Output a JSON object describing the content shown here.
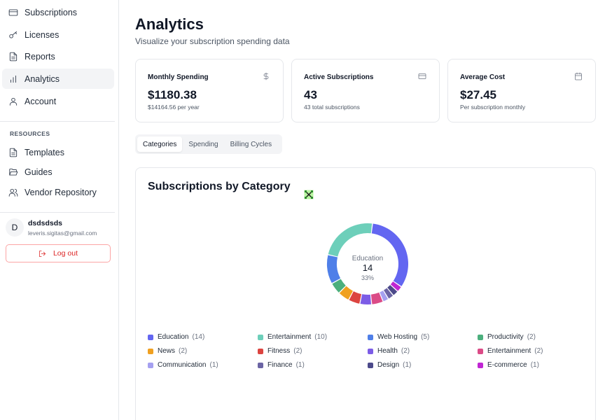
{
  "sidebar": {
    "items": [
      {
        "label": "Subscriptions",
        "icon": "credit-card-icon"
      },
      {
        "label": "Licenses",
        "icon": "key-icon"
      },
      {
        "label": "Reports",
        "icon": "file-text-icon"
      },
      {
        "label": "Analytics",
        "icon": "bar-chart-icon",
        "active": true
      },
      {
        "label": "Account",
        "icon": "user-icon"
      }
    ],
    "resources_label": "RESOURCES",
    "resources": [
      {
        "label": "Templates",
        "icon": "file-icon"
      },
      {
        "label": "Guides",
        "icon": "folder-open-icon"
      },
      {
        "label": "Vendor Repository",
        "icon": "users-icon"
      }
    ],
    "user": {
      "initial": "D",
      "name": "dsdsdsds",
      "email": "leveris.sigitas@gmail.com"
    },
    "logout_label": "Log out"
  },
  "header": {
    "title": "Analytics",
    "subtitle": "Visualize your subscription spending data"
  },
  "stats": [
    {
      "label": "Monthly Spending",
      "value": "$1180.38",
      "sub": "$14164.56 per year",
      "icon": "dollar-icon"
    },
    {
      "label": "Active Subscriptions",
      "value": "43",
      "sub": "43 total subscriptions",
      "icon": "card-icon"
    },
    {
      "label": "Average Cost",
      "value": "$27.45",
      "sub": "Per subscription monthly",
      "icon": "calendar-icon"
    }
  ],
  "tabs": [
    {
      "label": "Categories",
      "active": true
    },
    {
      "label": "Spending"
    },
    {
      "label": "Billing Cycles"
    }
  ],
  "chart_data": {
    "type": "pie",
    "title": "Subscriptions by Category",
    "center": {
      "label": "Education",
      "value": "14",
      "percent": "33%"
    },
    "slices": [
      {
        "name": "Education",
        "value": 14,
        "color": "#6366f1"
      },
      {
        "name": "E-commerce",
        "value": 1,
        "color": "#c026d3"
      },
      {
        "name": "Design",
        "value": 1,
        "color": "#4c4a8a"
      },
      {
        "name": "Finance",
        "value": 1,
        "color": "#6b64a4"
      },
      {
        "name": "Communication",
        "value": 1,
        "color": "#a5a0f0"
      },
      {
        "name": "Entertainment",
        "value": 2,
        "color": "#db4b87"
      },
      {
        "name": "Health",
        "value": 2,
        "color": "#7c5ce6"
      },
      {
        "name": "Fitness",
        "value": 2,
        "color": "#dc4440"
      },
      {
        "name": "News",
        "value": 2,
        "color": "#f0a020"
      },
      {
        "name": "Productivity",
        "value": 2,
        "color": "#4caf7d"
      },
      {
        "name": "Web Hosting",
        "value": 5,
        "color": "#4f7fe8"
      },
      {
        "name": "Entertainment",
        "value": 10,
        "color": "#6dcfba"
      }
    ],
    "legend": [
      {
        "name": "Education",
        "count": "(14)",
        "color": "#6366f1"
      },
      {
        "name": "Entertainment",
        "count": "(10)",
        "color": "#6dcfba"
      },
      {
        "name": "Web Hosting",
        "count": "(5)",
        "color": "#4f7fe8"
      },
      {
        "name": "Productivity",
        "count": "(2)",
        "color": "#4caf7d"
      },
      {
        "name": "News",
        "count": "(2)",
        "color": "#f0a020"
      },
      {
        "name": "Fitness",
        "count": "(2)",
        "color": "#dc4440"
      },
      {
        "name": "Health",
        "count": "(2)",
        "color": "#7c5ce6"
      },
      {
        "name": "Entertainment",
        "count": "(2)",
        "color": "#db4b87"
      },
      {
        "name": "Communication",
        "count": "(1)",
        "color": "#a5a0f0"
      },
      {
        "name": "Finance",
        "count": "(1)",
        "color": "#6b64a4"
      },
      {
        "name": "Design",
        "count": "(1)",
        "color": "#4c4a8a"
      },
      {
        "name": "E-commerce",
        "count": "(1)",
        "color": "#c026d3"
      }
    ]
  }
}
